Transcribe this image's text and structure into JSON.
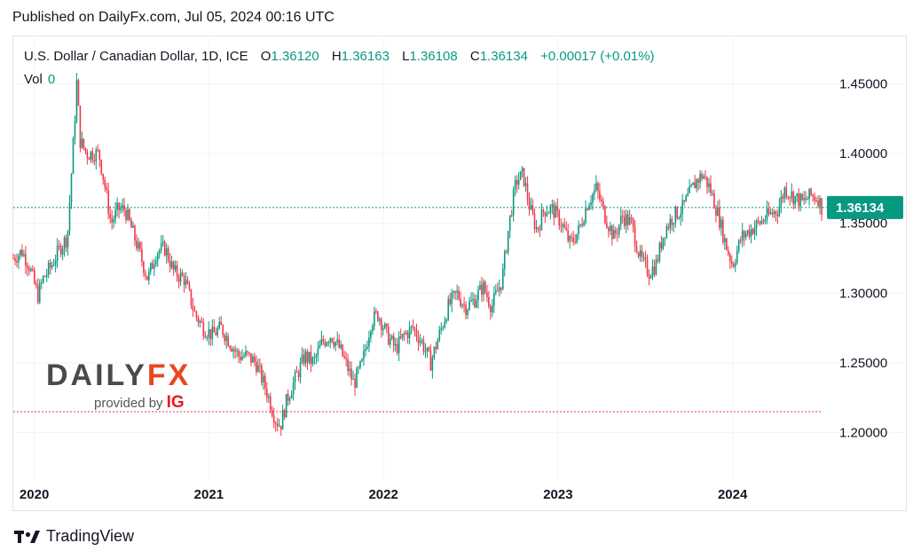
{
  "header": {
    "published": "Published on DailyFx.com, Jul 05, 2024 00:16 UTC"
  },
  "legend": {
    "symbol": "U.S. Dollar / Canadian Dollar, 1D, ICE",
    "o_label": "O",
    "o_value": "1.36120",
    "h_label": "H",
    "h_value": "1.36163",
    "l_label": "L",
    "l_value": "1.36108",
    "c_label": "C",
    "c_value": "1.36134",
    "change": "+0.00017 (+0.01%)",
    "vol_label": "Vol",
    "vol_value": "0"
  },
  "logo": {
    "brand_part1": "DAILY",
    "brand_part2": "FX",
    "provided_by": "provided by",
    "ig": "IG"
  },
  "footer": {
    "brand": "TradingView"
  },
  "colors": {
    "up": "#089981",
    "down": "#f23645",
    "last_price_badge": "#089981",
    "support_line": "#f23645"
  },
  "chart_data": {
    "type": "candlestick",
    "title": "U.S. Dollar / Canadian Dollar, 1D, ICE",
    "x_tick_labels": [
      "2020",
      "2021",
      "2022",
      "2023",
      "2024"
    ],
    "x_range": [
      2019.88,
      2024.51
    ],
    "y_tick_labels": [
      "1.45000",
      "1.40000",
      "1.35000",
      "1.30000",
      "1.25000",
      "1.20000"
    ],
    "y_ticks": [
      1.45,
      1.4,
      1.35,
      1.3,
      1.25,
      1.2
    ],
    "ylim": [
      1.1667,
      1.4833
    ],
    "last_price": 1.36134,
    "last_price_label": "1.36134",
    "horizontal_line": 1.215,
    "path": [
      [
        2019.88,
        1.325
      ],
      [
        2019.93,
        1.33
      ],
      [
        2019.97,
        1.32
      ],
      [
        2020.02,
        1.298
      ],
      [
        2020.05,
        1.31
      ],
      [
        2020.1,
        1.32
      ],
      [
        2020.15,
        1.333
      ],
      [
        2020.19,
        1.34
      ],
      [
        2020.21,
        1.38
      ],
      [
        2020.23,
        1.42
      ],
      [
        2020.245,
        1.455
      ],
      [
        2020.26,
        1.41
      ],
      [
        2020.3,
        1.4
      ],
      [
        2020.37,
        1.4
      ],
      [
        2020.4,
        1.38
      ],
      [
        2020.44,
        1.35
      ],
      [
        2020.48,
        1.36
      ],
      [
        2020.52,
        1.36
      ],
      [
        2020.56,
        1.345
      ],
      [
        2020.6,
        1.33
      ],
      [
        2020.65,
        1.31
      ],
      [
        2020.7,
        1.33
      ],
      [
        2020.75,
        1.332
      ],
      [
        2020.8,
        1.315
      ],
      [
        2020.86,
        1.31
      ],
      [
        2020.92,
        1.285
      ],
      [
        2020.97,
        1.275
      ],
      [
        2021.02,
        1.27
      ],
      [
        2021.07,
        1.275
      ],
      [
        2021.12,
        1.265
      ],
      [
        2021.17,
        1.255
      ],
      [
        2021.22,
        1.255
      ],
      [
        2021.27,
        1.25
      ],
      [
        2021.33,
        1.23
      ],
      [
        2021.38,
        1.21
      ],
      [
        2021.41,
        1.205
      ],
      [
        2021.45,
        1.225
      ],
      [
        2021.5,
        1.24
      ],
      [
        2021.55,
        1.255
      ],
      [
        2021.6,
        1.25
      ],
      [
        2021.65,
        1.265
      ],
      [
        2021.7,
        1.27
      ],
      [
        2021.75,
        1.26
      ],
      [
        2021.8,
        1.245
      ],
      [
        2021.83,
        1.235
      ],
      [
        2021.88,
        1.25
      ],
      [
        2021.93,
        1.28
      ],
      [
        2021.97,
        1.285
      ],
      [
        2022.02,
        1.27
      ],
      [
        2022.07,
        1.26
      ],
      [
        2022.12,
        1.27
      ],
      [
        2022.17,
        1.275
      ],
      [
        2022.22,
        1.265
      ],
      [
        2022.27,
        1.25
      ],
      [
        2022.32,
        1.27
      ],
      [
        2022.37,
        1.29
      ],
      [
        2022.42,
        1.3
      ],
      [
        2022.47,
        1.29
      ],
      [
        2022.52,
        1.295
      ],
      [
        2022.57,
        1.305
      ],
      [
        2022.62,
        1.29
      ],
      [
        2022.68,
        1.31
      ],
      [
        2022.72,
        1.35
      ],
      [
        2022.76,
        1.38
      ],
      [
        2022.8,
        1.385
      ],
      [
        2022.84,
        1.36
      ],
      [
        2022.88,
        1.345
      ],
      [
        2022.92,
        1.36
      ],
      [
        2022.97,
        1.36
      ],
      [
        2023.02,
        1.35
      ],
      [
        2023.07,
        1.335
      ],
      [
        2023.12,
        1.345
      ],
      [
        2023.17,
        1.365
      ],
      [
        2023.22,
        1.375
      ],
      [
        2023.27,
        1.355
      ],
      [
        2023.32,
        1.34
      ],
      [
        2023.37,
        1.355
      ],
      [
        2023.42,
        1.35
      ],
      [
        2023.47,
        1.325
      ],
      [
        2023.52,
        1.315
      ],
      [
        2023.56,
        1.32
      ],
      [
        2023.61,
        1.345
      ],
      [
        2023.66,
        1.355
      ],
      [
        2023.71,
        1.36
      ],
      [
        2023.75,
        1.37
      ],
      [
        2023.79,
        1.38
      ],
      [
        2023.83,
        1.385
      ],
      [
        2023.87,
        1.375
      ],
      [
        2023.92,
        1.355
      ],
      [
        2023.96,
        1.335
      ],
      [
        2024.0,
        1.32
      ],
      [
        2024.05,
        1.34
      ],
      [
        2024.1,
        1.345
      ],
      [
        2024.15,
        1.35
      ],
      [
        2024.2,
        1.355
      ],
      [
        2024.26,
        1.36
      ],
      [
        2024.3,
        1.375
      ],
      [
        2024.34,
        1.37
      ],
      [
        2024.4,
        1.365
      ],
      [
        2024.45,
        1.37
      ],
      [
        2024.49,
        1.368
      ],
      [
        2024.51,
        1.36134
      ]
    ]
  }
}
